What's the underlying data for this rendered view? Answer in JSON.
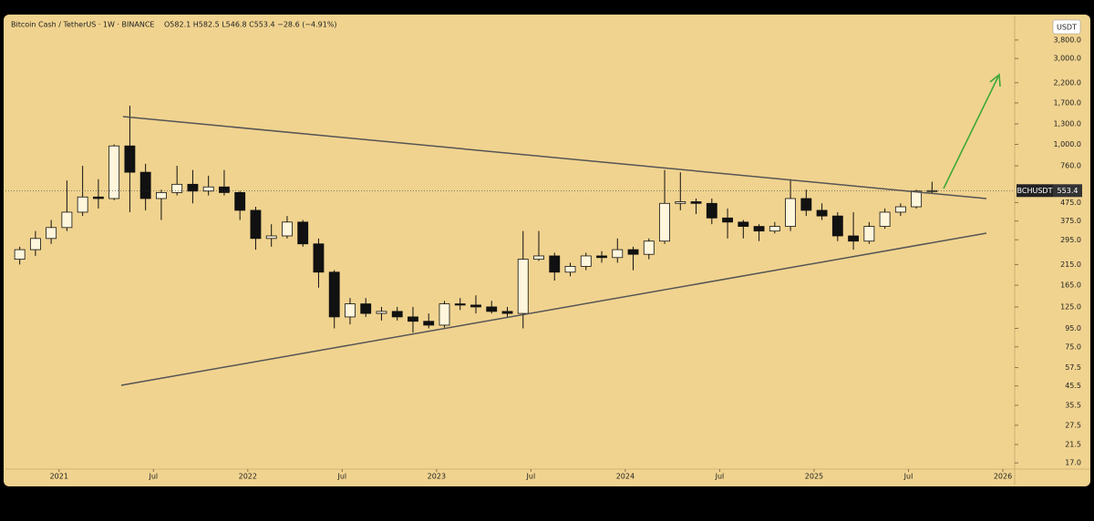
{
  "chart_data": {
    "type": "candlestick",
    "title": "Bitcoin Cash / TetherUS · 1W · BINANCE",
    "ohlc_text": "O582.1 H582.5 L546.8 C553.4 −28.6 (−4.91%)",
    "currency": "USDT",
    "symbol": "BCHUSDT",
    "last_price": 553.4,
    "log_scale": true,
    "up_color": "#fff6dc",
    "down_color": "#111111",
    "background": "#f0d38f",
    "x": [
      "2020-10",
      "2020-11",
      "2020-12",
      "2021-01",
      "2021-02",
      "2021-03",
      "2021-04",
      "2021-05",
      "2021-06",
      "2021-07",
      "2021-08",
      "2021-09",
      "2021-10",
      "2021-11",
      "2021-12",
      "2022-01",
      "2022-02",
      "2022-03",
      "2022-04",
      "2022-05",
      "2022-06",
      "2022-07",
      "2022-08",
      "2022-09",
      "2022-10",
      "2022-11",
      "2022-12",
      "2023-01",
      "2023-02",
      "2023-03",
      "2023-04",
      "2023-05",
      "2023-06",
      "2023-07",
      "2023-08",
      "2023-09",
      "2023-10",
      "2023-11",
      "2023-12",
      "2024-01",
      "2024-02",
      "2024-03",
      "2024-04",
      "2024-05",
      "2024-06",
      "2024-07",
      "2024-08",
      "2024-09",
      "2024-10",
      "2024-11",
      "2024-12",
      "2025-01",
      "2025-02",
      "2025-03",
      "2025-04",
      "2025-05",
      "2025-06",
      "2025-07",
      "2025-08"
    ],
    "open": [
      230,
      260,
      300,
      345,
      420,
      510,
      500,
      980,
      700,
      500,
      540,
      600,
      550,
      580,
      540,
      430,
      300,
      310,
      370,
      280,
      195,
      110,
      130,
      115,
      118,
      110,
      104,
      99,
      130,
      128,
      125,
      118,
      115,
      230,
      240,
      195,
      210,
      240,
      235,
      260,
      245,
      290,
      470,
      480,
      470,
      390,
      370,
      350,
      330,
      350,
      500,
      430,
      400,
      310,
      290,
      350,
      420,
      450,
      550
    ],
    "high": [
      270,
      330,
      380,
      630,
      760,
      640,
      1000,
      1640,
      780,
      560,
      760,
      720,
      670,
      720,
      550,
      450,
      360,
      400,
      380,
      300,
      200,
      140,
      140,
      125,
      125,
      125,
      115,
      135,
      140,
      145,
      135,
      125,
      330,
      330,
      250,
      220,
      250,
      255,
      300,
      270,
      300,
      720,
      700,
      500,
      500,
      440,
      380,
      360,
      370,
      640,
      560,
      470,
      420,
      420,
      370,
      440,
      470,
      560,
      620
    ],
    "low": [
      215,
      240,
      280,
      330,
      400,
      440,
      490,
      420,
      430,
      380,
      520,
      470,
      520,
      520,
      380,
      260,
      270,
      300,
      270,
      160,
      95,
      100,
      110,
      105,
      105,
      90,
      95,
      96,
      120,
      115,
      115,
      110,
      95,
      225,
      175,
      185,
      200,
      220,
      220,
      200,
      230,
      280,
      430,
      410,
      360,
      300,
      300,
      290,
      320,
      330,
      400,
      380,
      290,
      260,
      280,
      340,
      400,
      440,
      530
    ],
    "close": [
      260,
      300,
      345,
      420,
      510,
      500,
      980,
      700,
      500,
      540,
      600,
      550,
      580,
      540,
      430,
      300,
      310,
      370,
      280,
      195,
      110,
      130,
      115,
      118,
      110,
      104,
      99,
      130,
      128,
      125,
      118,
      115,
      230,
      240,
      195,
      210,
      240,
      235,
      260,
      245,
      290,
      470,
      480,
      470,
      390,
      370,
      350,
      330,
      350,
      500,
      430,
      400,
      310,
      290,
      350,
      420,
      450,
      550,
      553.4
    ],
    "xlim": [
      "2020-10",
      "2026-01"
    ],
    "xticks": [
      {
        "value": "2021-01",
        "label": "2021"
      },
      {
        "value": "2021-07",
        "label": "Jul"
      },
      {
        "value": "2022-01",
        "label": "2022"
      },
      {
        "value": "2022-07",
        "label": "Jul"
      },
      {
        "value": "2023-01",
        "label": "2023"
      },
      {
        "value": "2023-07",
        "label": "Jul"
      },
      {
        "value": "2024-01",
        "label": "2024"
      },
      {
        "value": "2024-07",
        "label": "Jul"
      },
      {
        "value": "2025-01",
        "label": "2025"
      },
      {
        "value": "2025-07",
        "label": "Jul"
      },
      {
        "value": "2026-01",
        "label": "2026"
      }
    ],
    "ylim": [
      15.7,
      5140
    ],
    "yticks": [
      {
        "value": 3800,
        "label": "3,800.0"
      },
      {
        "value": 3000,
        "label": "3,000.0"
      },
      {
        "value": 2200,
        "label": "2,200.0"
      },
      {
        "value": 1700,
        "label": "1,700.0"
      },
      {
        "value": 1300,
        "label": "1,300.0"
      },
      {
        "value": 1000,
        "label": "1,000.0"
      },
      {
        "value": 760,
        "label": "760.0"
      },
      {
        "value": 475,
        "label": "475.0"
      },
      {
        "value": 375,
        "label": "375.0"
      },
      {
        "value": 295,
        "label": "295.0"
      },
      {
        "value": 215,
        "label": "215.0"
      },
      {
        "value": 165,
        "label": "165.0"
      },
      {
        "value": 125,
        "label": "125.0"
      },
      {
        "value": 95,
        "label": "95.0"
      },
      {
        "value": 75,
        "label": "75.0"
      },
      {
        "value": 57.5,
        "label": "57.5"
      },
      {
        "value": 45.5,
        "label": "45.5"
      },
      {
        "value": 35.5,
        "label": "35.5"
      },
      {
        "value": 27.5,
        "label": "27.5"
      },
      {
        "value": 21.5,
        "label": "21.5"
      },
      {
        "value": 17,
        "label": "17.0"
      }
    ]
  }
}
